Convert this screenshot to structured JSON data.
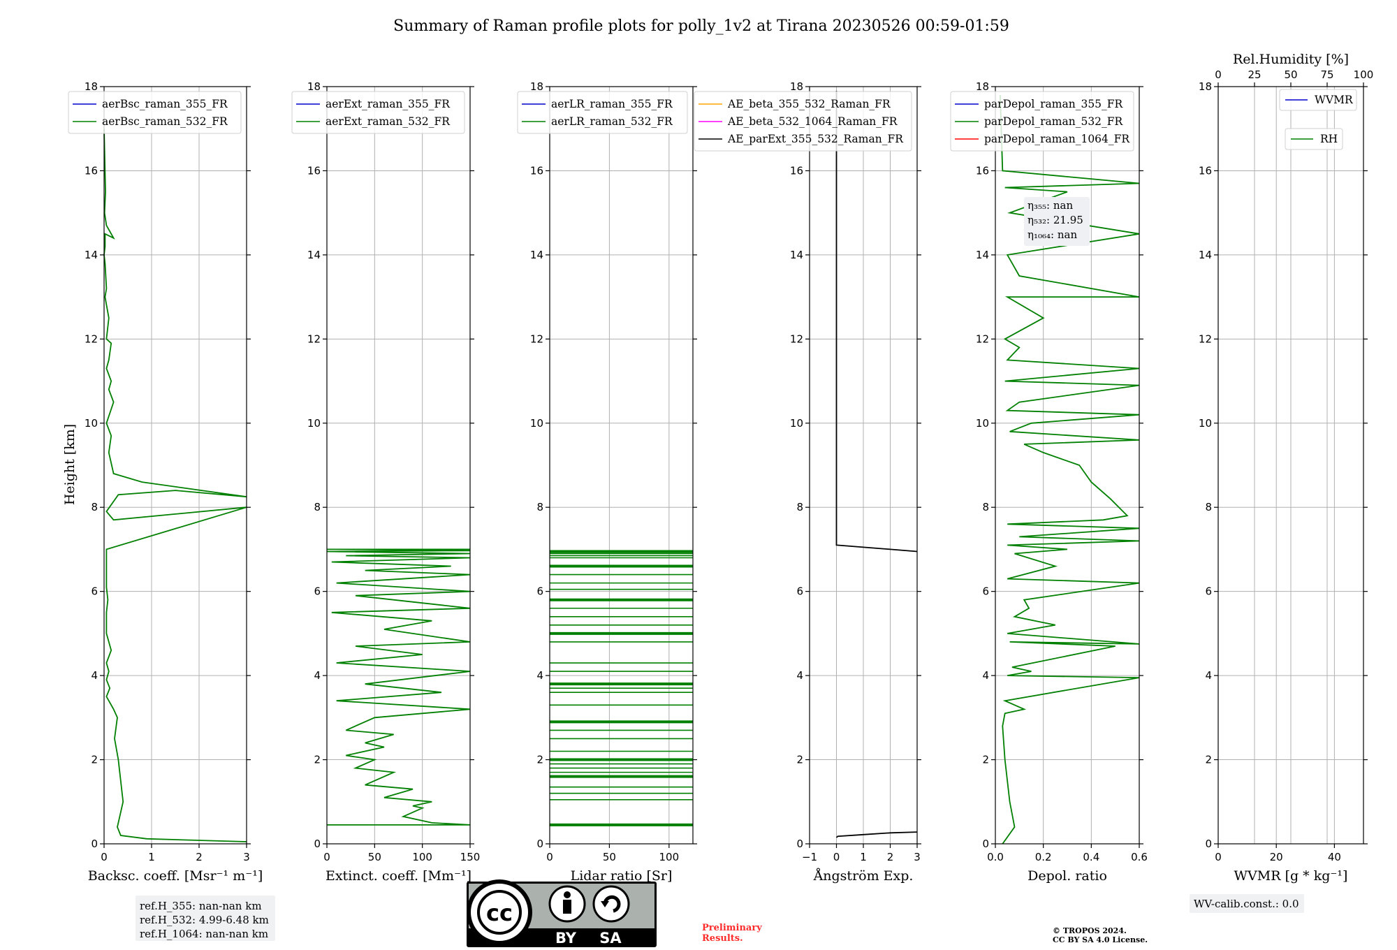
{
  "figure": {
    "title": "Summary of Raman profile plots for polly_1v2 at Tirana 20230526 00:59-01:59",
    "ylabel": "Height [km]",
    "ref_box": [
      "ref.H_355: nan-nan km",
      "ref.H_532: 4.99-6.48 km",
      "ref.H_1064: nan-nan km"
    ],
    "wv_box": "WV-calib.const.: 0.0",
    "preliminary": [
      "Preliminary",
      "Results."
    ],
    "copyright": [
      "© TROPOS 2024.",
      "CC BY SA 4.0 License."
    ],
    "license_badge": {
      "by": "BY",
      "sa": "SA",
      "icon": "cc-by-sa-icon"
    }
  },
  "chart_data": [
    {
      "type": "line",
      "xlabel": "Backsc. coeff. [Msr⁻¹ m⁻¹]",
      "ylabel": "Height [km]",
      "xlim": [
        0,
        3
      ],
      "ylim": [
        0,
        18
      ],
      "xticks": [
        0,
        1,
        2,
        3
      ],
      "yticks": [
        0,
        2,
        4,
        6,
        8,
        10,
        12,
        14,
        16,
        18
      ],
      "grid": true,
      "legend_position": "top-right",
      "series": [
        {
          "name": "aerBsc_raman_355_FR",
          "color": "#0000cc",
          "x": [],
          "y": []
        },
        {
          "name": "aerBsc_raman_532_FR",
          "color": "#008000",
          "x": [
            3.0,
            0.9,
            0.35,
            0.28,
            0.4,
            0.35,
            0.3,
            0.22,
            0.28,
            0.2,
            0.05,
            0.12,
            0.05,
            0.1,
            0.05,
            0.15,
            0.05,
            0.05,
            0.08,
            0.05,
            0.05,
            3.0,
            0.2,
            0.05,
            0.3,
            1.5,
            3.0,
            0.8,
            0.2,
            0.1,
            0.15,
            0.05,
            0.2,
            0.1,
            0.15,
            0.05,
            0.1,
            0.15,
            0.05,
            0.1,
            0.02,
            0.05,
            0.02,
            0.0,
            0.02,
            0.02,
            0.2,
            0.05,
            0.01,
            0.03,
            0.0
          ],
          "y": [
            0.05,
            0.12,
            0.2,
            0.4,
            1.0,
            1.5,
            2.0,
            2.5,
            3.0,
            3.2,
            3.5,
            3.7,
            3.9,
            4.1,
            4.3,
            4.6,
            5.0,
            5.5,
            5.8,
            6.1,
            7.0,
            8.0,
            7.7,
            7.9,
            8.3,
            8.4,
            8.25,
            8.6,
            8.8,
            9.3,
            9.7,
            10.0,
            10.5,
            10.8,
            11.0,
            11.3,
            11.5,
            11.9,
            12.0,
            12.5,
            13.0,
            13.2,
            13.8,
            14.0,
            14.2,
            14.5,
            14.4,
            14.7,
            15.0,
            15.5,
            17.0
          ]
        }
      ]
    },
    {
      "type": "line",
      "xlabel": "Extinct. coeff. [Mm⁻¹]",
      "xlim": [
        0,
        150
      ],
      "ylim": [
        0,
        18
      ],
      "xticks": [
        0,
        50,
        100,
        150
      ],
      "yticks": [
        0,
        2,
        4,
        6,
        8,
        10,
        12,
        14,
        16,
        18
      ],
      "grid": true,
      "legend_position": "top-right",
      "series": [
        {
          "name": "aerExt_raman_355_FR",
          "color": "#0000cc",
          "x": [],
          "y": []
        },
        {
          "name": "aerExt_raman_532_FR",
          "color": "#008000",
          "x": [
            0,
            150,
            110,
            80,
            100,
            90,
            110,
            60,
            90,
            40,
            70,
            30,
            50,
            20,
            60,
            40,
            70,
            20,
            50,
            150,
            10,
            120,
            40,
            150,
            10,
            100,
            30,
            150,
            60,
            110,
            5,
            150,
            30,
            150,
            10,
            150,
            40,
            130,
            5,
            150,
            20,
            150,
            0,
            150,
            10,
            150,
            5,
            150,
            0,
            150,
            0
          ],
          "y": [
            0.45,
            0.45,
            0.5,
            0.65,
            0.85,
            0.9,
            1.0,
            1.1,
            1.3,
            1.4,
            1.7,
            1.8,
            2.0,
            2.1,
            2.3,
            2.4,
            2.6,
            2.7,
            3.0,
            3.2,
            3.4,
            3.6,
            3.8,
            4.1,
            4.3,
            4.5,
            4.7,
            4.8,
            5.1,
            5.3,
            5.5,
            5.6,
            5.9,
            6.0,
            6.2,
            6.4,
            6.5,
            6.6,
            6.7,
            6.8,
            6.85,
            6.9,
            6.95,
            6.97,
            7.0,
            7.0,
            7.0,
            7.0,
            7.0,
            7.0,
            7.0
          ]
        }
      ]
    },
    {
      "type": "line",
      "xlabel": "Lidar ratio [Sr]",
      "xlim": [
        0,
        120
      ],
      "ylim": [
        0,
        18
      ],
      "xticks": [
        0,
        50,
        100
      ],
      "yticks": [
        0,
        2,
        4,
        6,
        8,
        10,
        12,
        14,
        16,
        18
      ],
      "grid": true,
      "legend_position": "top-right",
      "series": [
        {
          "name": "aerLR_raman_355_FR",
          "color": "#0000cc",
          "x": [],
          "y": []
        },
        {
          "name": "aerLR_raman_532_FR",
          "color": "#008000",
          "hlines_y": [
            0.45,
            1.05,
            1.2,
            1.35,
            1.6,
            1.7,
            1.8,
            1.9,
            2.0,
            2.2,
            2.5,
            2.7,
            2.9,
            3.3,
            3.6,
            3.7,
            3.8,
            4.1,
            4.3,
            4.8,
            5.0,
            5.2,
            5.4,
            5.6,
            5.8,
            6.05,
            6.2,
            6.4,
            6.6,
            6.8,
            6.85,
            6.9,
            6.95
          ],
          "hlines_xmax": 120
        }
      ]
    },
    {
      "type": "line",
      "xlabel": "Ångström Exp.",
      "xlim": [
        -1,
        3
      ],
      "ylim": [
        0,
        18
      ],
      "xticks": [
        -1,
        0,
        1,
        2,
        3
      ],
      "yticks": [
        0,
        2,
        4,
        6,
        8,
        10,
        12,
        14,
        16,
        18
      ],
      "grid": true,
      "legend_position": "top-right",
      "series": [
        {
          "name": "AE_beta_355_532_Raman_FR",
          "color": "#ffa500",
          "x": [],
          "y": []
        },
        {
          "name": "AE_beta_532_1064_Raman_FR",
          "color": "#ff00ff",
          "x": [],
          "y": []
        },
        {
          "name": "AE_parExt_355_532_Raman_FR",
          "color": "#000000",
          "x": [
            0,
            0.05,
            1.0,
            2.0,
            3.0,
            null,
            3.0,
            2.0,
            1.0,
            0.02,
            0.0,
            0.0
          ],
          "y": [
            0.15,
            0.18,
            0.22,
            0.26,
            0.28,
            null,
            6.95,
            7.0,
            7.05,
            7.1,
            7.1,
            17.9
          ]
        }
      ]
    },
    {
      "type": "line",
      "xlabel": "Depol. ratio",
      "xlim": [
        0,
        0.6
      ],
      "ylim": [
        0,
        18
      ],
      "xticks": [
        0.0,
        0.2,
        0.4,
        0.6
      ],
      "yticks": [
        0,
        2,
        4,
        6,
        8,
        10,
        12,
        14,
        16,
        18
      ],
      "grid": true,
      "legend_position": "top-right",
      "annotation": [
        "η₃₅₅: nan",
        "η₅₃₂: 21.95",
        "η₁₀₆₄: nan"
      ],
      "series": [
        {
          "name": "parDepol_raman_355_FR",
          "color": "#0000cc",
          "x": [],
          "y": []
        },
        {
          "name": "parDepol_raman_532_FR",
          "color": "#008000",
          "x": [
            0.03,
            0.08,
            0.06,
            0.04,
            0.03,
            0.04,
            0.12,
            0.04,
            0.6,
            0.05,
            0.15,
            0.07,
            0.5,
            0.06,
            0.6,
            0.05,
            0.25,
            0.08,
            0.14,
            0.12,
            0.6,
            0.05,
            0.25,
            0.08,
            0.3,
            0.05,
            0.6,
            0.1,
            0.6,
            0.05,
            0.45,
            0.55,
            0.48,
            0.4,
            0.35,
            0.2,
            0.12,
            0.6,
            0.06,
            0.15,
            0.6,
            0.05,
            0.1,
            0.6,
            0.04,
            0.6,
            0.05,
            0.1,
            0.04,
            0.2,
            0.05,
            0.6,
            0.1,
            0.05,
            0.6,
            0.06,
            0.3,
            0.04,
            0.6,
            0.03,
            0.02
          ],
          "y": [
            0.0,
            0.4,
            1.0,
            2.0,
            2.8,
            3.1,
            3.2,
            3.4,
            3.95,
            4.0,
            4.1,
            4.2,
            4.7,
            4.8,
            4.75,
            5.0,
            5.2,
            5.4,
            5.6,
            5.8,
            6.2,
            6.3,
            6.6,
            6.9,
            7.0,
            7.1,
            7.2,
            7.3,
            7.5,
            7.6,
            7.7,
            7.8,
            8.2,
            8.6,
            9.0,
            9.3,
            9.5,
            9.6,
            9.8,
            10.0,
            10.2,
            10.3,
            10.5,
            10.9,
            11.0,
            11.3,
            11.5,
            11.8,
            12.0,
            12.5,
            13.0,
            13.0,
            13.5,
            14.0,
            14.5,
            15.0,
            15.5,
            15.6,
            15.7,
            16.0,
            17.8
          ]
        },
        {
          "name": "parDepol_raman_1064_FR",
          "color": "#ff0000",
          "x": [],
          "y": []
        }
      ]
    },
    {
      "type": "line",
      "xlabel": "WVMR [g * kg⁻¹]",
      "x2label": "Rel.Humidity [%]",
      "xlim": [
        0,
        50
      ],
      "x2lim": [
        0,
        100
      ],
      "ylim": [
        0,
        18
      ],
      "xticks": [
        0,
        20,
        40
      ],
      "x2ticks": [
        0,
        25,
        50,
        75,
        100
      ],
      "yticks": [
        0,
        2,
        4,
        6,
        8,
        10,
        12,
        14,
        16,
        18
      ],
      "grid": true,
      "legend_position": "top-right",
      "series": [
        {
          "name": "WVMR",
          "color": "#0000cc",
          "x": [],
          "y": []
        },
        {
          "name": "RH",
          "color": "#008000",
          "x": [],
          "y": []
        }
      ]
    }
  ]
}
